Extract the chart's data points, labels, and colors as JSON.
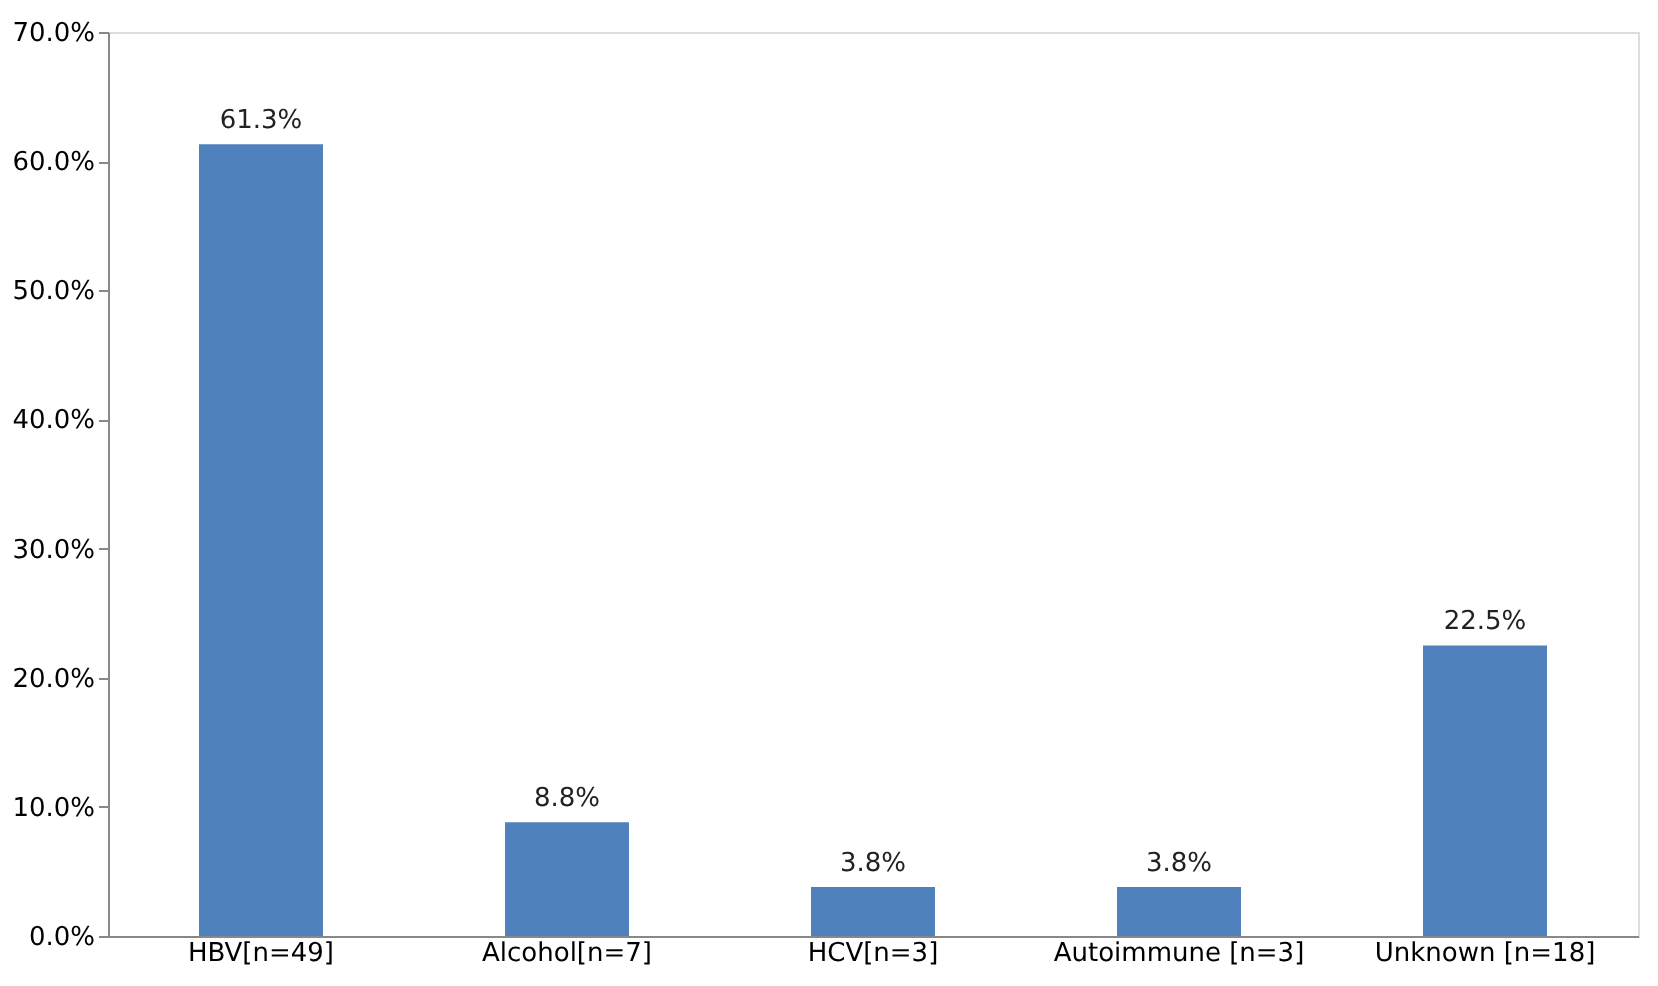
{
  "chart_data": {
    "type": "bar",
    "categories": [
      "HBV[n=49]",
      "Alcohol[n=7]",
      "HCV[n=3]",
      "Autoimmune [n=3]",
      "Unknown [n=18]"
    ],
    "values": [
      61.3,
      8.8,
      3.8,
      3.8,
      22.5
    ],
    "value_labels": [
      "61.3%",
      "8.8%",
      "3.8%",
      "3.8%",
      "22.5%"
    ],
    "color": "#4f81bd",
    "ylim": [
      0,
      70
    ],
    "yticks": [
      {
        "value": 0,
        "label": "0.0%"
      },
      {
        "value": 10,
        "label": "10.0%"
      },
      {
        "value": 20,
        "label": "20.0%"
      },
      {
        "value": 30,
        "label": "30.0%"
      },
      {
        "value": 40,
        "label": "40.0%"
      },
      {
        "value": 50,
        "label": "50.0%"
      },
      {
        "value": 60,
        "label": "60.0%"
      },
      {
        "value": 70,
        "label": "70.0%"
      }
    ],
    "grid": false
  }
}
